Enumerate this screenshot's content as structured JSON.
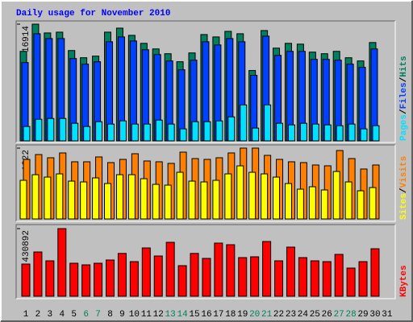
{
  "chart_data": [
    {
      "type": "bar",
      "title": "Daily usage for November 2010",
      "legend_separator": "/",
      "ylim": [
        0,
        16914
      ],
      "yticks": [
        16914
      ],
      "series": [
        {
          "name": "Hits",
          "color": "#00805c",
          "values": [
            12975,
            16914,
            15640,
            15756,
            13091,
            12048,
            12280,
            15756,
            16335,
            15292,
            14134,
            13323,
            12628,
            11469,
            12744,
            15408,
            15061,
            15871,
            15524,
            10195,
            15987,
            13439,
            14134,
            14018,
            12859,
            12628,
            12975,
            12048,
            11585,
            14250,
            0
          ]
        },
        {
          "name": "Files",
          "color": "#0040ff",
          "values": [
            11353,
            15524,
            14829,
            14829,
            11933,
            11122,
            11469,
            14365,
            15061,
            14481,
            13207,
            12512,
            11585,
            10311,
            11701,
            14365,
            13902,
            14829,
            14365,
            9500,
            15176,
            12396,
            12975,
            12975,
            11817,
            11817,
            11701,
            11122,
            10658,
            13323,
            0
          ]
        },
        {
          "name": "Pages",
          "color": "#00e0ff",
          "values": [
            2085,
            3128,
            3244,
            3244,
            2549,
            2085,
            2780,
            2433,
            2896,
            2433,
            2433,
            3012,
            2433,
            1738,
            2780,
            2780,
            2896,
            3476,
            5213,
            1854,
            5213,
            2549,
            2317,
            2549,
            2433,
            2317,
            2201,
            2433,
            1738,
            2201,
            0
          ]
        }
      ]
    },
    {
      "type": "bar",
      "legend_separator": "/",
      "ylim": [
        0,
        1322
      ],
      "yticks": [
        1322
      ],
      "series": [
        {
          "name": "Visits",
          "color": "#ff8000",
          "values": [
            1112,
            1202,
            1142,
            1232,
            1067,
            1067,
            1157,
            1052,
            1112,
            1217,
            1082,
            1067,
            1037,
            1247,
            1127,
            1112,
            1142,
            1232,
            1322,
            1322,
            1187,
            1112,
            1067,
            1052,
            1007,
            992,
            1277,
            1127,
            932,
            1007,
            0
          ]
        },
        {
          "name": "Sites",
          "color": "#ffff00",
          "values": [
            721,
            826,
            781,
            841,
            706,
            691,
            766,
            661,
            826,
            826,
            751,
            646,
            631,
            871,
            706,
            691,
            721,
            841,
            991,
            871,
            841,
            781,
            661,
            556,
            601,
            541,
            886,
            691,
            526,
            586,
            0
          ]
        }
      ]
    },
    {
      "type": "bar",
      "ylim": [
        0,
        430892
      ],
      "yticks": [
        430892
      ],
      "categories": [
        "1",
        "2",
        "3",
        "4",
        "5",
        "6",
        "7",
        "8",
        "9",
        "10",
        "11",
        "12",
        "13",
        "14",
        "15",
        "16",
        "17",
        "18",
        "19",
        "20",
        "21",
        "22",
        "23",
        "24",
        "25",
        "26",
        "27",
        "28",
        "29",
        "30",
        "31"
      ],
      "highlight_categories": [
        5,
        6,
        12,
        13,
        19,
        20,
        26,
        27
      ],
      "highlight_color": "#00805c",
      "series": [
        {
          "name": "KBytes",
          "color": "#ff0000",
          "values": [
            205196,
            282149,
            225719,
            430892,
            210326,
            200066,
            210326,
            230849,
            272887,
            220589,
            307794,
            256495,
            343703,
            194936,
            272887,
            241105,
            338573,
            328313,
            246235,
            251365,
            348833,
            225719,
            312924,
            246235,
            225719,
            220589,
            266755,
            179546,
            220589,
            302663,
            0
          ]
        }
      ]
    }
  ]
}
